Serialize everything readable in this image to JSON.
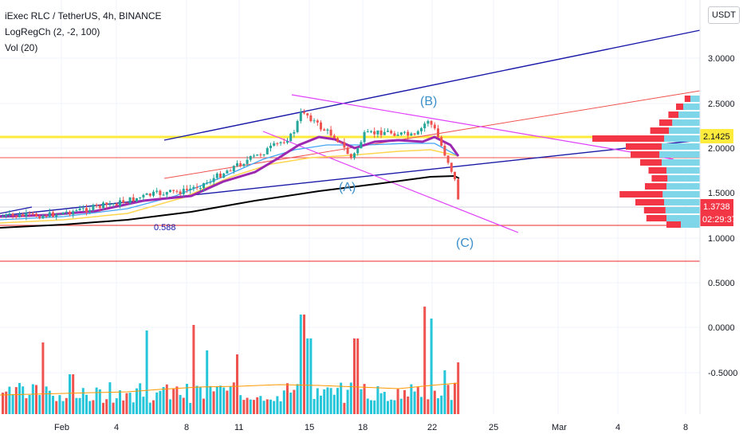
{
  "legend": {
    "symbol": "iExec RLC / TetherUS, 4h, BINANCE",
    "indicator": "LogRegCh (2, -2, 100)",
    "volume": "Vol (20)"
  },
  "currency": "USDT",
  "price_axis_ticks": [
    "3.0000",
    "2.5000",
    "2.0000",
    "1.5000",
    "1.0000",
    "0.5000",
    "0.0000",
    "-0.5000"
  ],
  "time_axis_ticks": [
    "Feb",
    "4",
    "8",
    "11",
    "15",
    "18",
    "22",
    "25",
    "Mar",
    "4",
    "8"
  ],
  "tags": {
    "yellow_level": "2.1425",
    "last_price": "1.3738",
    "countdown": "02:29:37"
  },
  "annotations": {
    "fib_label": "0.588",
    "wave_a": "(A)",
    "wave_b": "(B)",
    "wave_c": "(C)"
  },
  "colors": {
    "up": "#26a69a",
    "down": "#ef5350",
    "channel_blue": "#1a237e",
    "magenta": "#e040fb",
    "yellow_line": "#ffeb3b",
    "purple_ma": "#9c27b0",
    "tag_red": "#f23645",
    "profile_red": "#f23645",
    "profile_cyan": "#7fd6e8"
  }
}
